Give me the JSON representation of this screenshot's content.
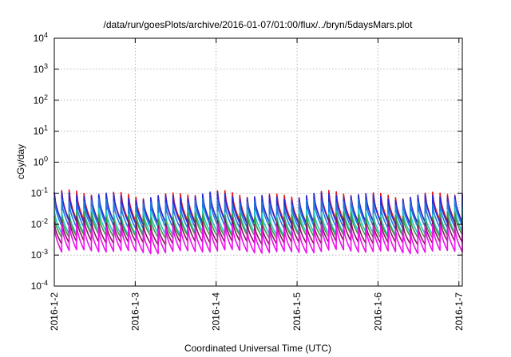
{
  "chart_data": {
    "type": "line",
    "title": "/data/run/goesPlots/archive/2016-01-07/01:00/flux/../bryn/5daysMars.plot",
    "xlabel": "Coordinated Universal Time (UTC)",
    "ylabel": "cGy/day",
    "y_scale": "log",
    "ylim": [
      0.0001,
      10000
    ],
    "y_ticks": [
      {
        "value": 0.0001,
        "base": "10",
        "exp": "-4"
      },
      {
        "value": 0.001,
        "base": "10",
        "exp": "-3"
      },
      {
        "value": 0.01,
        "base": "10",
        "exp": "-2"
      },
      {
        "value": 0.1,
        "base": "10",
        "exp": "-1"
      },
      {
        "value": 1,
        "base": "10",
        "exp": "0"
      },
      {
        "value": 10,
        "base": "10",
        "exp": "1"
      },
      {
        "value": 100,
        "base": "10",
        "exp": "2"
      },
      {
        "value": 1000,
        "base": "10",
        "exp": "3"
      },
      {
        "value": 10000,
        "base": "10",
        "exp": "4"
      }
    ],
    "xlim": [
      "2016-01-02T00:00",
      "2016-01-07T01:00"
    ],
    "x_ticks": [
      {
        "value": "2016-01-02T00:00",
        "label": "2016-1-2"
      },
      {
        "value": "2016-01-03T00:00",
        "label": "2016-1-3"
      },
      {
        "value": "2016-01-04T00:00",
        "label": "2016-1-4"
      },
      {
        "value": "2016-01-05T00:00",
        "label": "2016-1-5"
      },
      {
        "value": "2016-01-06T00:00",
        "label": "2016-1-6"
      },
      {
        "value": "2016-01-07T00:00",
        "label": "2016-1-7"
      }
    ],
    "grid": true,
    "pattern": "sawtooth spikes roughly every 2.2 hours; each series jumps to a peak then decays",
    "series": [
      {
        "color": "#e8141c",
        "peak_value": 0.09,
        "trough_value": 0.012
      },
      {
        "color": "#2a2ad8",
        "peak_value": 0.08,
        "trough_value": 0.011
      },
      {
        "color": "#1e7be0",
        "peak_value": 0.05,
        "trough_value": 0.008
      },
      {
        "color": "#22c7c7",
        "peak_value": 0.025,
        "trough_value": 0.005
      },
      {
        "color": "#3a9a3a",
        "peak_value": 0.018,
        "trough_value": 0.004
      },
      {
        "color": "#8a1060",
        "peak_value": 0.012,
        "trough_value": 0.0025
      },
      {
        "color": "#ee10ee",
        "peak_value": 0.008,
        "trough_value": 0.0013
      }
    ]
  }
}
